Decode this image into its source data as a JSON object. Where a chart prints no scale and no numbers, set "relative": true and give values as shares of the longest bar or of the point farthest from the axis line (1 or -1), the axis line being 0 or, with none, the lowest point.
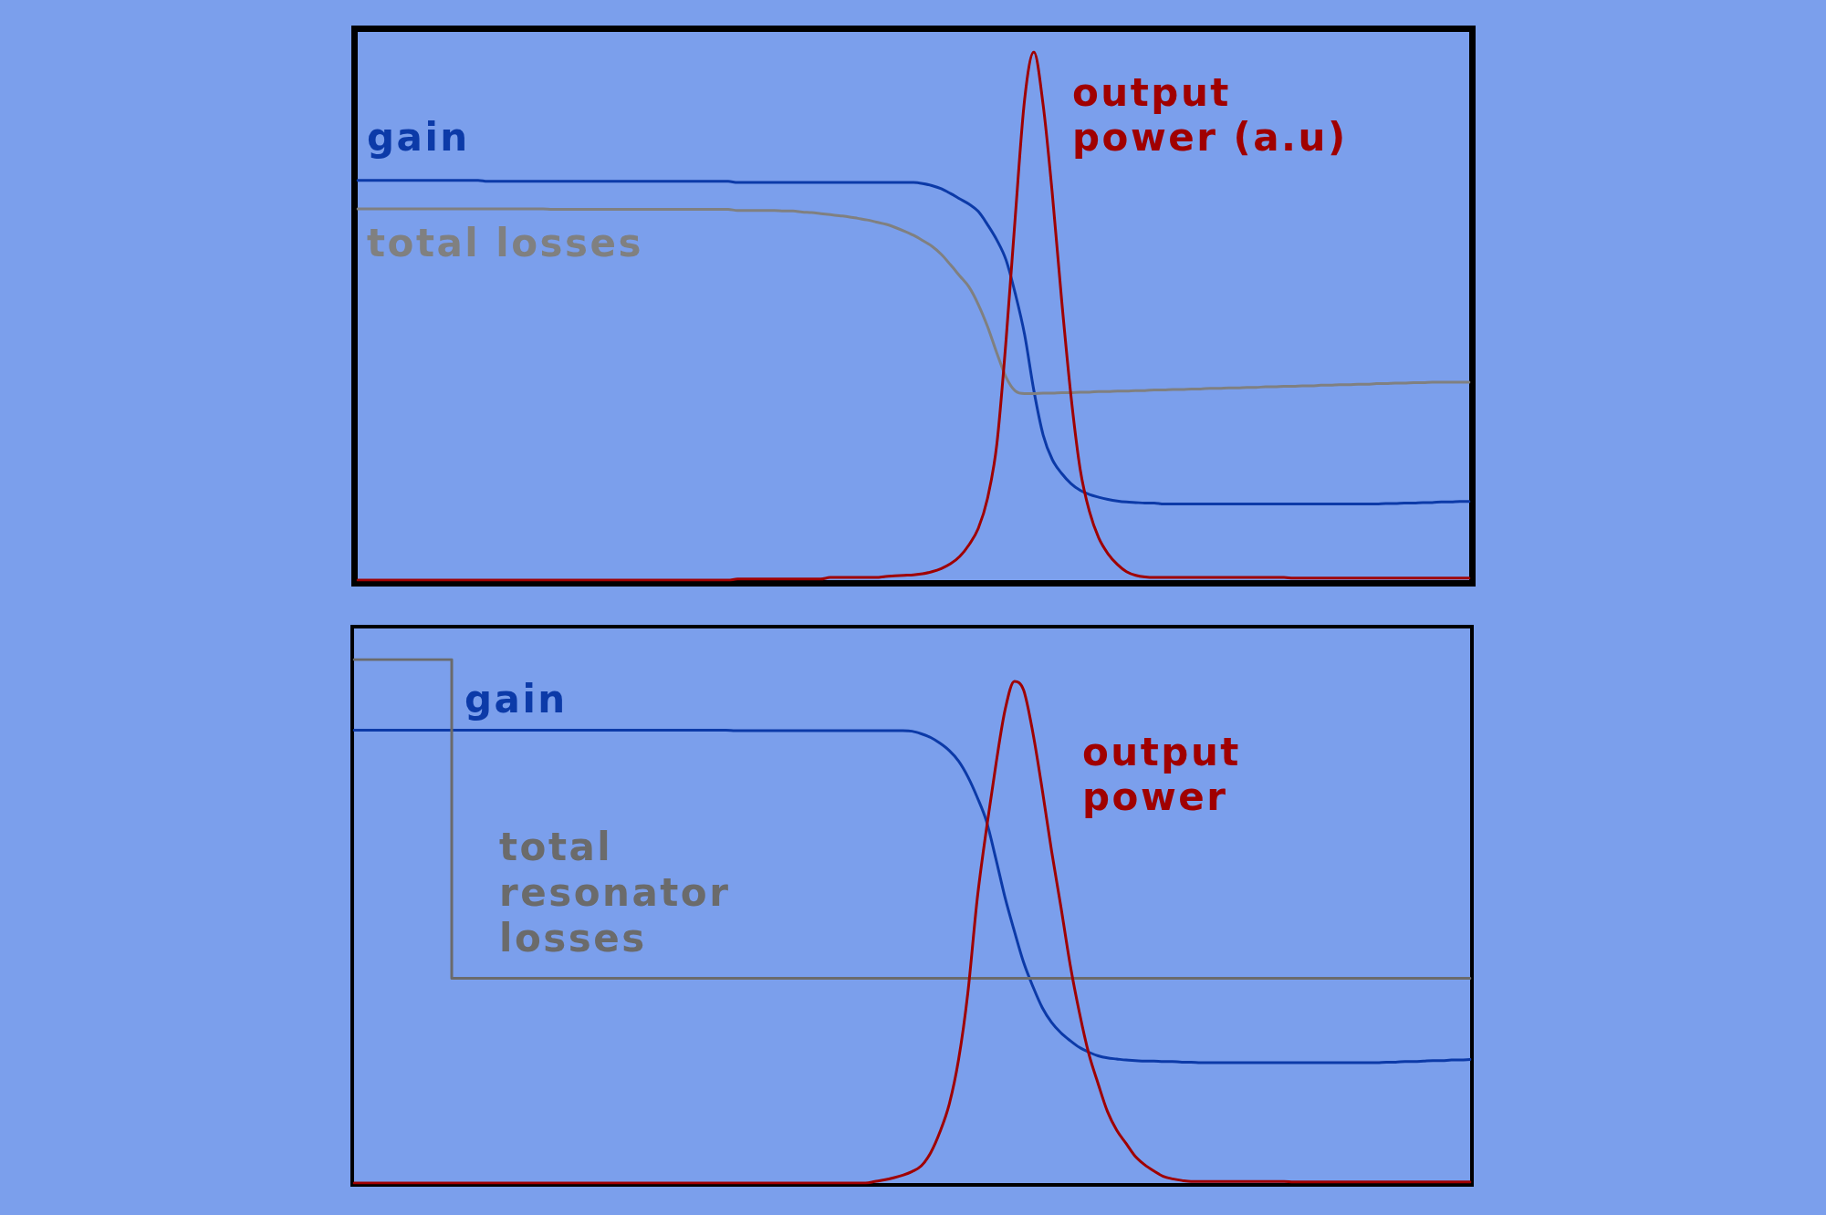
{
  "chart_data": [
    {
      "type": "line",
      "relative": true,
      "tick_labels": false,
      "marker": "none",
      "line_style": "solid",
      "categories": [
        null,
        null,
        null,
        null,
        null,
        null,
        null,
        null,
        null,
        null,
        null,
        null,
        null,
        null,
        null,
        null,
        null,
        null,
        null,
        null,
        null,
        null,
        null,
        null,
        null,
        null,
        null,
        null,
        null,
        null,
        null,
        null,
        null,
        null,
        null,
        null,
        null,
        null,
        null,
        null,
        null,
        null,
        null,
        null,
        null,
        null,
        null,
        null,
        null,
        null,
        null,
        null,
        null,
        null,
        null,
        null,
        null,
        null,
        null,
        null,
        null,
        null,
        null,
        null,
        null,
        null,
        null,
        null,
        null,
        null,
        null,
        null,
        null,
        null,
        null,
        null,
        null,
        null,
        null,
        null,
        null,
        null,
        null,
        null,
        null,
        null,
        null,
        null,
        null,
        null,
        null,
        null,
        null,
        null,
        null,
        null,
        null,
        null,
        null,
        null,
        null,
        null,
        null,
        null,
        null,
        null,
        null,
        null,
        null,
        null,
        null,
        null,
        null,
        null,
        null,
        null,
        null,
        null,
        null,
        null,
        null
      ],
      "series": [
        {
          "name": "gain",
          "color": "#0c3aa8",
          "values": [
            0.757,
            0.757,
            0.757,
            0.757,
            0.757,
            0.757,
            0.757,
            0.757,
            0.757,
            0.757,
            0.757,
            0.757,
            0.757,
            0.757,
            0.755,
            0.755,
            0.755,
            0.755,
            0.755,
            0.755,
            0.755,
            0.755,
            0.755,
            0.755,
            0.755,
            0.755,
            0.755,
            0.755,
            0.755,
            0.755,
            0.755,
            0.755,
            0.755,
            0.755,
            0.755,
            0.755,
            0.755,
            0.755,
            0.755,
            0.755,
            0.755,
            0.753,
            0.753,
            0.753,
            0.753,
            0.753,
            0.753,
            0.753,
            0.753,
            0.753,
            0.753,
            0.753,
            0.753,
            0.753,
            0.753,
            0.753,
            0.753,
            0.753,
            0.753,
            0.753,
            0.753,
            0.751,
            0.747,
            0.741,
            0.732,
            0.722,
            0.712,
            0.698,
            0.673,
            0.644,
            0.606,
            0.542,
            0.465,
            0.359,
            0.275,
            0.228,
            0.202,
            0.183,
            0.17,
            0.162,
            0.157,
            0.153,
            0.15,
            0.148,
            0.147,
            0.146,
            0.146,
            0.144,
            0.144,
            0.144,
            0.144,
            0.144,
            0.144,
            0.144,
            0.144,
            0.144,
            0.144,
            0.144,
            0.144,
            0.144,
            0.144,
            0.144,
            0.144,
            0.144,
            0.144,
            0.144,
            0.144,
            0.144,
            0.144,
            0.144,
            0.144,
            0.145,
            0.145,
            0.146,
            0.146,
            0.147,
            0.147,
            0.148,
            0.148,
            0.149,
            0.149
          ]
        },
        {
          "name": "total losses",
          "color": "#808080",
          "values": [
            0.703,
            0.703,
            0.703,
            0.703,
            0.703,
            0.703,
            0.703,
            0.703,
            0.703,
            0.703,
            0.703,
            0.703,
            0.703,
            0.703,
            0.703,
            0.703,
            0.703,
            0.703,
            0.703,
            0.703,
            0.703,
            0.702,
            0.702,
            0.702,
            0.702,
            0.702,
            0.702,
            0.702,
            0.702,
            0.702,
            0.702,
            0.702,
            0.702,
            0.702,
            0.702,
            0.702,
            0.702,
            0.702,
            0.702,
            0.702,
            0.702,
            0.7,
            0.7,
            0.7,
            0.7,
            0.7,
            0.699,
            0.699,
            0.697,
            0.696,
            0.694,
            0.692,
            0.69,
            0.688,
            0.685,
            0.682,
            0.678,
            0.674,
            0.668,
            0.661,
            0.653,
            0.643,
            0.632,
            0.617,
            0.597,
            0.576,
            0.555,
            0.522,
            0.48,
            0.43,
            0.384,
            0.358,
            0.353,
            0.353,
            0.354,
            0.354,
            0.355,
            0.355,
            0.356,
            0.356,
            0.357,
            0.357,
            0.358,
            0.358,
            0.359,
            0.359,
            0.36,
            0.36,
            0.361,
            0.361,
            0.362,
            0.362,
            0.363,
            0.363,
            0.364,
            0.364,
            0.365,
            0.365,
            0.366,
            0.366,
            0.367,
            0.367,
            0.368,
            0.368,
            0.369,
            0.369,
            0.37,
            0.37,
            0.371,
            0.371,
            0.372,
            0.372,
            0.373,
            0.373,
            0.374,
            0.374,
            0.375,
            0.375,
            0.375,
            0.375,
            0.375
          ]
        },
        {
          "name": "output power (a.u)",
          "color": "#a00000",
          "values": [
            0,
            0,
            0,
            0,
            0,
            0,
            0,
            0,
            0,
            0,
            0,
            0,
            0,
            0,
            0,
            0,
            0,
            0,
            0,
            0,
            0,
            0,
            0,
            0,
            0,
            0,
            0,
            0,
            0,
            0,
            0,
            0,
            0,
            0,
            0,
            0,
            0,
            0,
            0,
            0,
            0,
            0.002,
            0.002,
            0.002,
            0.002,
            0.002,
            0.002,
            0.002,
            0.002,
            0.002,
            0.002,
            0.005,
            0.005,
            0.005,
            0.005,
            0.005,
            0.005,
            0.007,
            0.008,
            0.009,
            0.01,
            0.012,
            0.016,
            0.022,
            0.031,
            0.045,
            0.067,
            0.098,
            0.155,
            0.257,
            0.455,
            0.69,
            0.91,
            1,
            0.9,
            0.73,
            0.53,
            0.35,
            0.21,
            0.13,
            0.08,
            0.05,
            0.03,
            0.016,
            0.009,
            0.006,
            0.005,
            0.005,
            0.005,
            0.005,
            0.005,
            0.005,
            0.005,
            0.005,
            0.005,
            0.005,
            0.005,
            0.005,
            0.005,
            0.005,
            0.005,
            0.004,
            0.004,
            0.004,
            0.004,
            0.004,
            0.004,
            0.004,
            0.004,
            0.004,
            0.004,
            0.004,
            0.004,
            0.004,
            0.004,
            0.004,
            0.004,
            0.004,
            0.004,
            0.004,
            0.004
          ]
        }
      ]
    },
    {
      "type": "line",
      "relative": true,
      "tick_labels": false,
      "marker": "none",
      "line_style": "solid",
      "categories": [
        null,
        null,
        null,
        null,
        null,
        null,
        null,
        null,
        null,
        null,
        null,
        null,
        null,
        null,
        null,
        null,
        null,
        null,
        null,
        null,
        null,
        null,
        null,
        null,
        null,
        null,
        null,
        null,
        null,
        null,
        null,
        null,
        null,
        null,
        null,
        null,
        null,
        null,
        null,
        null,
        null,
        null,
        null,
        null,
        null,
        null,
        null,
        null,
        null,
        null,
        null,
        null,
        null,
        null,
        null,
        null,
        null,
        null,
        null,
        null,
        null,
        null,
        null,
        null,
        null,
        null,
        null,
        null,
        null,
        null,
        null,
        null,
        null,
        null,
        null,
        null,
        null,
        null,
        null,
        null,
        null,
        null,
        null,
        null,
        null,
        null,
        null,
        null,
        null,
        null,
        null,
        null,
        null,
        null,
        null,
        null,
        null,
        null,
        null,
        null,
        null,
        null,
        null,
        null,
        null,
        null,
        null,
        null,
        null,
        null,
        null,
        null,
        null,
        null,
        null,
        null,
        null,
        null,
        null,
        null,
        null
      ],
      "series": [
        {
          "name": "gain",
          "color": "#0c3aa8",
          "values": [
            0.865,
            0.865,
            0.865,
            0.865,
            0.865,
            0.865,
            0.865,
            0.865,
            0.865,
            0.865,
            0.865,
            0.865,
            0.865,
            0.865,
            0.865,
            0.865,
            0.865,
            0.865,
            0.865,
            0.865,
            0.865,
            0.865,
            0.865,
            0.865,
            0.865,
            0.865,
            0.865,
            0.865,
            0.865,
            0.865,
            0.865,
            0.865,
            0.865,
            0.865,
            0.865,
            0.865,
            0.865,
            0.865,
            0.865,
            0.865,
            0.865,
            0.864,
            0.864,
            0.864,
            0.864,
            0.864,
            0.864,
            0.864,
            0.864,
            0.864,
            0.864,
            0.864,
            0.864,
            0.864,
            0.864,
            0.864,
            0.864,
            0.864,
            0.864,
            0.864,
            0.863,
            0.858,
            0.851,
            0.84,
            0.826,
            0.806,
            0.776,
            0.737,
            0.691,
            0.62,
            0.545,
            0.481,
            0.421,
            0.375,
            0.335,
            0.307,
            0.287,
            0.272,
            0.259,
            0.25,
            0.243,
            0.239,
            0.237,
            0.235,
            0.234,
            0.233,
            0.233,
            0.232,
            0.232,
            0.231,
            0.231,
            0.23,
            0.23,
            0.23,
            0.23,
            0.23,
            0.23,
            0.23,
            0.23,
            0.23,
            0.23,
            0.23,
            0.23,
            0.23,
            0.23,
            0.23,
            0.23,
            0.23,
            0.23,
            0.23,
            0.23,
            0.231,
            0.231,
            0.232,
            0.232,
            0.233,
            0.234,
            0.234,
            0.235,
            0.235,
            0.236
          ]
        },
        {
          "name": "total resonator losses",
          "type": "step",
          "color": "#6b6b6b",
          "values": [
            1,
            1,
            1,
            1,
            1,
            1,
            1,
            1,
            1,
            1,
            1,
            0.391,
            0.391,
            0.391,
            0.391,
            0.391,
            0.391,
            0.391,
            0.391,
            0.391,
            0.391,
            0.391,
            0.391,
            0.391,
            0.391,
            0.391,
            0.391,
            0.391,
            0.391,
            0.391,
            0.391,
            0.391,
            0.391,
            0.391,
            0.391,
            0.391,
            0.391,
            0.391,
            0.391,
            0.391,
            0.391,
            0.391,
            0.391,
            0.391,
            0.391,
            0.391,
            0.391,
            0.391,
            0.391,
            0.391,
            0.391,
            0.391,
            0.391,
            0.391,
            0.391,
            0.391,
            0.391,
            0.391,
            0.391,
            0.391,
            0.391,
            0.391,
            0.391,
            0.391,
            0.391,
            0.391,
            0.391,
            0.391,
            0.391,
            0.391,
            0.391,
            0.391,
            0.391,
            0.391,
            0.391,
            0.391,
            0.391,
            0.391,
            0.391,
            0.391,
            0.391,
            0.391,
            0.391,
            0.391,
            0.391,
            0.391,
            0.391,
            0.391,
            0.391,
            0.391,
            0.391,
            0.391,
            0.391,
            0.391,
            0.391,
            0.391,
            0.391,
            0.391,
            0.391,
            0.391,
            0.391,
            0.391,
            0.391,
            0.391,
            0.391,
            0.391,
            0.391,
            0.391,
            0.391,
            0.391,
            0.391,
            0.391,
            0.391,
            0.391,
            0.391,
            0.391,
            0.391,
            0.391,
            0.391,
            0.391,
            0.391
          ]
        },
        {
          "name": "output power",
          "color": "#a00000",
          "values": [
            0,
            0,
            0,
            0,
            0,
            0,
            0,
            0,
            0,
            0,
            0,
            0,
            0,
            0,
            0,
            0,
            0,
            0,
            0,
            0,
            0,
            0,
            0,
            0,
            0,
            0,
            0,
            0,
            0,
            0,
            0,
            0,
            0,
            0,
            0,
            0,
            0,
            0,
            0,
            0,
            0,
            0,
            0,
            0,
            0,
            0,
            0,
            0,
            0,
            0,
            0,
            0,
            0,
            0,
            0,
            0,
            0.003,
            0.006,
            0.01,
            0.015,
            0.022,
            0.033,
            0.058,
            0.098,
            0.151,
            0.236,
            0.364,
            0.542,
            0.677,
            0.798,
            0.904,
            0.958,
            0.941,
            0.859,
            0.751,
            0.634,
            0.528,
            0.417,
            0.325,
            0.247,
            0.19,
            0.137,
            0.101,
            0.076,
            0.051,
            0.035,
            0.023,
            0.013,
            0.008,
            0.005,
            0.003,
            0.003,
            0.003,
            0.003,
            0.003,
            0.003,
            0.003,
            0.003,
            0.003,
            0.003,
            0.003,
            0.002,
            0.002,
            0.002,
            0.002,
            0.002,
            0.002,
            0.002,
            0.002,
            0.002,
            0.002,
            0.002,
            0.002,
            0.002,
            0.002,
            0.002,
            0.002,
            0.002,
            0.002,
            0.002,
            0.002
          ]
        }
      ]
    }
  ]
}
